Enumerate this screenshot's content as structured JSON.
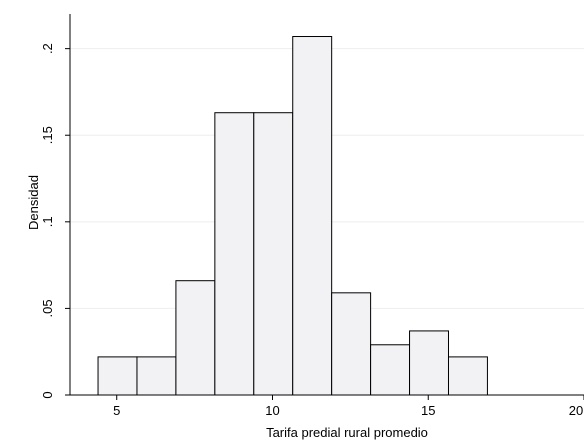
{
  "chart_data": {
    "type": "bar",
    "xlabel": "Tarifa predial rural promedio",
    "ylabel": "Densidad",
    "xlim": [
      3.5,
      20
    ],
    "ylim": [
      0,
      0.22
    ],
    "x_ticks": [
      5,
      10,
      15,
      20
    ],
    "y_ticks": [
      0,
      0.05,
      0.1,
      0.15,
      0.2
    ],
    "y_tick_labels": [
      "0",
      ".05",
      ".1",
      ".15",
      ".2"
    ],
    "grid": true,
    "bar_color": "#f2f2f5",
    "bins": [
      {
        "x0": 4.4,
        "x1": 5.65,
        "density": 0.022
      },
      {
        "x0": 5.65,
        "x1": 6.9,
        "density": 0.022
      },
      {
        "x0": 6.9,
        "x1": 8.15,
        "density": 0.066
      },
      {
        "x0": 8.15,
        "x1": 9.4,
        "density": 0.163
      },
      {
        "x0": 9.4,
        "x1": 10.65,
        "density": 0.163
      },
      {
        "x0": 10.65,
        "x1": 11.9,
        "density": 0.207
      },
      {
        "x0": 11.9,
        "x1": 13.15,
        "density": 0.059
      },
      {
        "x0": 13.15,
        "x1": 14.4,
        "density": 0.029
      },
      {
        "x0": 14.4,
        "x1": 15.65,
        "density": 0.037
      },
      {
        "x0": 15.65,
        "x1": 16.9,
        "density": 0.022
      }
    ]
  }
}
